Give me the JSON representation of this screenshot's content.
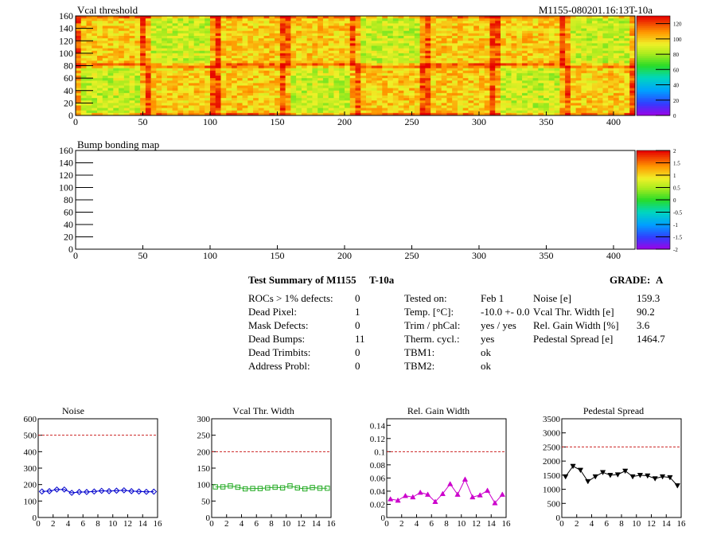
{
  "top_title_right": "M1155-080201.16:13T-10a",
  "summary": {
    "title": "Test Summary of M1155",
    "tag": "T-10a",
    "grade_label": "GRADE:",
    "grade_value": "A",
    "defects": [
      {
        "label": "ROCs > 1% defects:",
        "value": "0"
      },
      {
        "label": "Dead Pixel:",
        "value": "1"
      },
      {
        "label": "Mask Defects:",
        "value": "0"
      },
      {
        "label": "Dead Bumps:",
        "value": "11"
      },
      {
        "label": "Dead Trimbits:",
        "value": "0"
      },
      {
        "label": "Address Probl:",
        "value": "0"
      }
    ],
    "conditions": [
      {
        "label": "Tested on:",
        "value": "Feb 1"
      },
      {
        "label": "Temp. [°C]:",
        "value": "-10.0 +- 0.0"
      },
      {
        "label": "Trim / phCal:",
        "value": "yes / yes"
      },
      {
        "label": "Therm. cycl.:",
        "value": "yes"
      },
      {
        "label": "TBM1:",
        "value": "ok"
      },
      {
        "label": "TBM2:",
        "value": "ok"
      }
    ],
    "results": [
      {
        "label": "Noise [e]",
        "value": "159.3"
      },
      {
        "label": "Vcal Thr. Width [e]",
        "value": "90.2"
      },
      {
        "label": "Rel. Gain Width [%]",
        "value": "3.6"
      },
      {
        "label": "Pedestal Spread [e]",
        "value": "1464.7"
      }
    ]
  },
  "chart_data": [
    {
      "type": "heatmap",
      "title": "Vcal threshold",
      "xlim": [
        0,
        416
      ],
      "ylim": [
        0,
        160
      ],
      "xticks": [
        0,
        50,
        100,
        150,
        200,
        250,
        300,
        350,
        400
      ],
      "yticks": [
        0,
        20,
        40,
        60,
        80,
        100,
        120,
        140,
        160
      ],
      "colorbar": {
        "min": 0,
        "max": 130,
        "ticks": [
          0,
          20,
          40,
          60,
          80,
          100,
          120
        ]
      },
      "typical_value": 100
    },
    {
      "type": "heatmap",
      "title": "Bump bonding map",
      "xlim": [
        0,
        416
      ],
      "ylim": [
        0,
        160
      ],
      "xticks": [
        0,
        50,
        100,
        150,
        200,
        250,
        300,
        350,
        400
      ],
      "yticks": [
        0,
        20,
        40,
        60,
        80,
        100,
        120,
        140,
        160
      ],
      "colorbar": {
        "min": -2,
        "max": 2,
        "ticks": [
          -2,
          -1.5,
          -1,
          -0.5,
          0,
          0.5,
          1,
          1.5,
          2
        ]
      },
      "typical_value": 0
    },
    {
      "type": "scatter",
      "title": "Noise",
      "color": "#0000cc",
      "marker": "diamond",
      "xlim": [
        0,
        16
      ],
      "ylim": [
        0,
        600
      ],
      "xticks": [
        0,
        2,
        4,
        6,
        8,
        10,
        12,
        14,
        16
      ],
      "yticks": [
        0,
        100,
        200,
        300,
        400,
        500,
        600
      ],
      "ytick_labels": [
        "0",
        "100",
        "200",
        "300",
        "400",
        "500",
        "600"
      ],
      "threshold": 500,
      "x": [
        0.5,
        1.5,
        2.5,
        3.5,
        4.5,
        5.5,
        6.5,
        7.5,
        8.5,
        9.5,
        10.5,
        11.5,
        12.5,
        13.5,
        14.5,
        15.5
      ],
      "values": [
        158,
        160,
        170,
        170,
        150,
        155,
        155,
        158,
        162,
        160,
        163,
        165,
        160,
        158,
        156,
        157
      ]
    },
    {
      "type": "scatter",
      "title": "Vcal Thr. Width",
      "color": "#22aa22",
      "marker": "square",
      "xlim": [
        0,
        16
      ],
      "ylim": [
        0,
        300
      ],
      "xticks": [
        0,
        2,
        4,
        6,
        8,
        10,
        12,
        14,
        16
      ],
      "yticks": [
        0,
        50,
        100,
        150,
        200,
        250,
        300
      ],
      "ytick_labels": [
        "0",
        "50",
        "100",
        "150",
        "200",
        "250",
        "300"
      ],
      "threshold": 200,
      "x": [
        0.5,
        1.5,
        2.5,
        3.5,
        4.5,
        5.5,
        6.5,
        7.5,
        8.5,
        9.5,
        10.5,
        11.5,
        12.5,
        13.5,
        14.5,
        15.5
      ],
      "values": [
        93,
        93,
        96,
        92,
        87,
        88,
        88,
        90,
        92,
        90,
        96,
        90,
        87,
        91,
        89,
        89
      ]
    },
    {
      "type": "line",
      "title": "Rel. Gain Width",
      "color": "#cc00cc",
      "marker": "triangle-up",
      "xlim": [
        0,
        16
      ],
      "ylim": [
        0,
        0.15
      ],
      "xticks": [
        0,
        2,
        4,
        6,
        8,
        10,
        12,
        14,
        16
      ],
      "yticks": [
        0,
        0.02,
        0.04,
        0.06,
        0.08,
        0.1,
        0.12,
        0.14
      ],
      "ytick_labels": [
        "0",
        "0.02",
        "0.04",
        "0.06",
        "0.08",
        "0.1",
        "0.12",
        "0.14"
      ],
      "threshold": 0.1,
      "x": [
        0.5,
        1.5,
        2.5,
        3.5,
        4.5,
        5.5,
        6.5,
        7.5,
        8.5,
        9.5,
        10.5,
        11.5,
        12.5,
        13.5,
        14.5,
        15.5
      ],
      "values": [
        0.028,
        0.026,
        0.033,
        0.031,
        0.038,
        0.035,
        0.024,
        0.036,
        0.051,
        0.035,
        0.058,
        0.031,
        0.034,
        0.041,
        0.022,
        0.035
      ]
    },
    {
      "type": "line",
      "title": "Pedestal Spread",
      "color": "#000000",
      "marker": "triangle-down",
      "xlim": [
        0,
        16
      ],
      "ylim": [
        0,
        3500
      ],
      "xticks": [
        0,
        2,
        4,
        6,
        8,
        10,
        12,
        14,
        16
      ],
      "yticks": [
        0,
        500,
        1000,
        1500,
        2000,
        2500,
        3000,
        3500
      ],
      "ytick_labels": [
        "0",
        "500",
        "1000",
        "1500",
        "2000",
        "2500",
        "3000",
        "3500"
      ],
      "threshold": 2500,
      "x": [
        0.5,
        1.5,
        2.5,
        3.5,
        4.5,
        5.5,
        6.5,
        7.5,
        8.5,
        9.5,
        10.5,
        11.5,
        12.5,
        13.5,
        14.5,
        15.5
      ],
      "values": [
        1450,
        1820,
        1680,
        1280,
        1450,
        1600,
        1500,
        1520,
        1650,
        1450,
        1500,
        1480,
        1380,
        1450,
        1420,
        1130
      ]
    }
  ]
}
